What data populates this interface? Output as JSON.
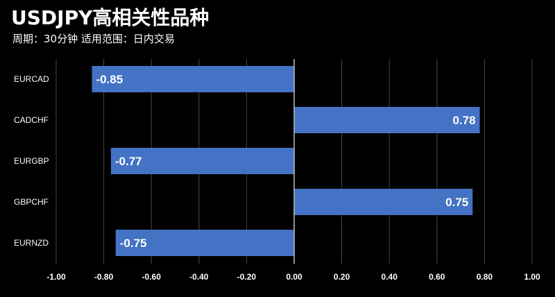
{
  "header": {
    "title": "USDJPY高相关性品种",
    "subtitle": "周期：30分钟  适用范围：日内交易"
  },
  "colors": {
    "background": "#000000",
    "bar": "#4472c4",
    "grid": "#4a4a4a",
    "zero_line": "#bfbfbf",
    "text": "#ffffff"
  },
  "chart_data": {
    "type": "bar",
    "orientation": "horizontal",
    "title": "USDJPY高相关性品种",
    "subtitle": "周期：30分钟  适用范围：日内交易",
    "categories": [
      "EURCAD",
      "CADCHF",
      "EURGBP",
      "GBPCHF",
      "EURNZD"
    ],
    "values": [
      -0.85,
      0.78,
      -0.77,
      0.75,
      -0.75
    ],
    "data_labels": [
      "-0.85",
      "0.78",
      "-0.77",
      "0.75",
      "-0.75"
    ],
    "xlim": [
      -1.0,
      1.0
    ],
    "x_ticks": [
      -1.0,
      -0.8,
      -0.6,
      -0.4,
      -0.2,
      0.0,
      0.2,
      0.4,
      0.6,
      0.8,
      1.0
    ],
    "x_tick_labels": [
      "-1.00",
      "-0.80",
      "-0.60",
      "-0.40",
      "-0.20",
      "0.00",
      "0.20",
      "0.40",
      "0.60",
      "0.80",
      "1.00"
    ],
    "grid": true,
    "legend": "none"
  }
}
